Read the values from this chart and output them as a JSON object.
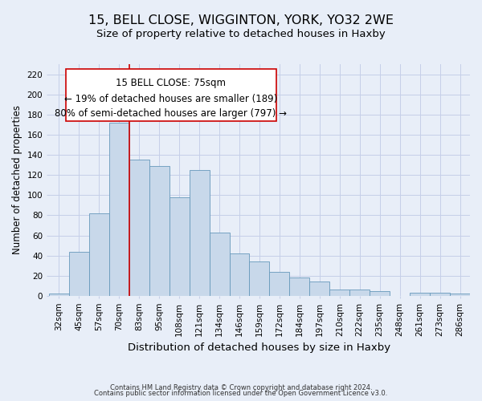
{
  "title": "15, BELL CLOSE, WIGGINTON, YORK, YO32 2WE",
  "subtitle": "Size of property relative to detached houses in Haxby",
  "xlabel": "Distribution of detached houses by size in Haxby",
  "ylabel": "Number of detached properties",
  "footer_lines": [
    "Contains HM Land Registry data © Crown copyright and database right 2024.",
    "Contains public sector information licensed under the Open Government Licence v3.0."
  ],
  "bin_labels": [
    "32sqm",
    "45sqm",
    "57sqm",
    "70sqm",
    "83sqm",
    "95sqm",
    "108sqm",
    "121sqm",
    "134sqm",
    "146sqm",
    "159sqm",
    "172sqm",
    "184sqm",
    "197sqm",
    "210sqm",
    "222sqm",
    "235sqm",
    "248sqm",
    "261sqm",
    "273sqm",
    "286sqm"
  ],
  "bar_values": [
    2,
    44,
    82,
    172,
    135,
    129,
    98,
    125,
    63,
    42,
    34,
    24,
    18,
    14,
    6,
    6,
    5,
    0,
    3,
    3,
    2
  ],
  "bar_color": "#c8d8ea",
  "bar_edge_color": "#6699bb",
  "annotation_line1": "15 BELL CLOSE: 75sqm",
  "annotation_line2": "← 19% of detached houses are smaller (189)",
  "annotation_line3": "80% of semi-detached houses are larger (797) →",
  "vline_x_index": 3.5,
  "vline_color": "#cc0000",
  "ylim": [
    0,
    230
  ],
  "yticks": [
    0,
    20,
    40,
    60,
    80,
    100,
    120,
    140,
    160,
    180,
    200,
    220
  ],
  "background_color": "#e8eef8",
  "grid_color": "#c5cfe8",
  "title_fontsize": 11.5,
  "subtitle_fontsize": 9.5,
  "xlabel_fontsize": 9.5,
  "ylabel_fontsize": 8.5,
  "tick_fontsize": 7.5,
  "annotation_fontsize": 8.5,
  "footer_fontsize": 6.0
}
